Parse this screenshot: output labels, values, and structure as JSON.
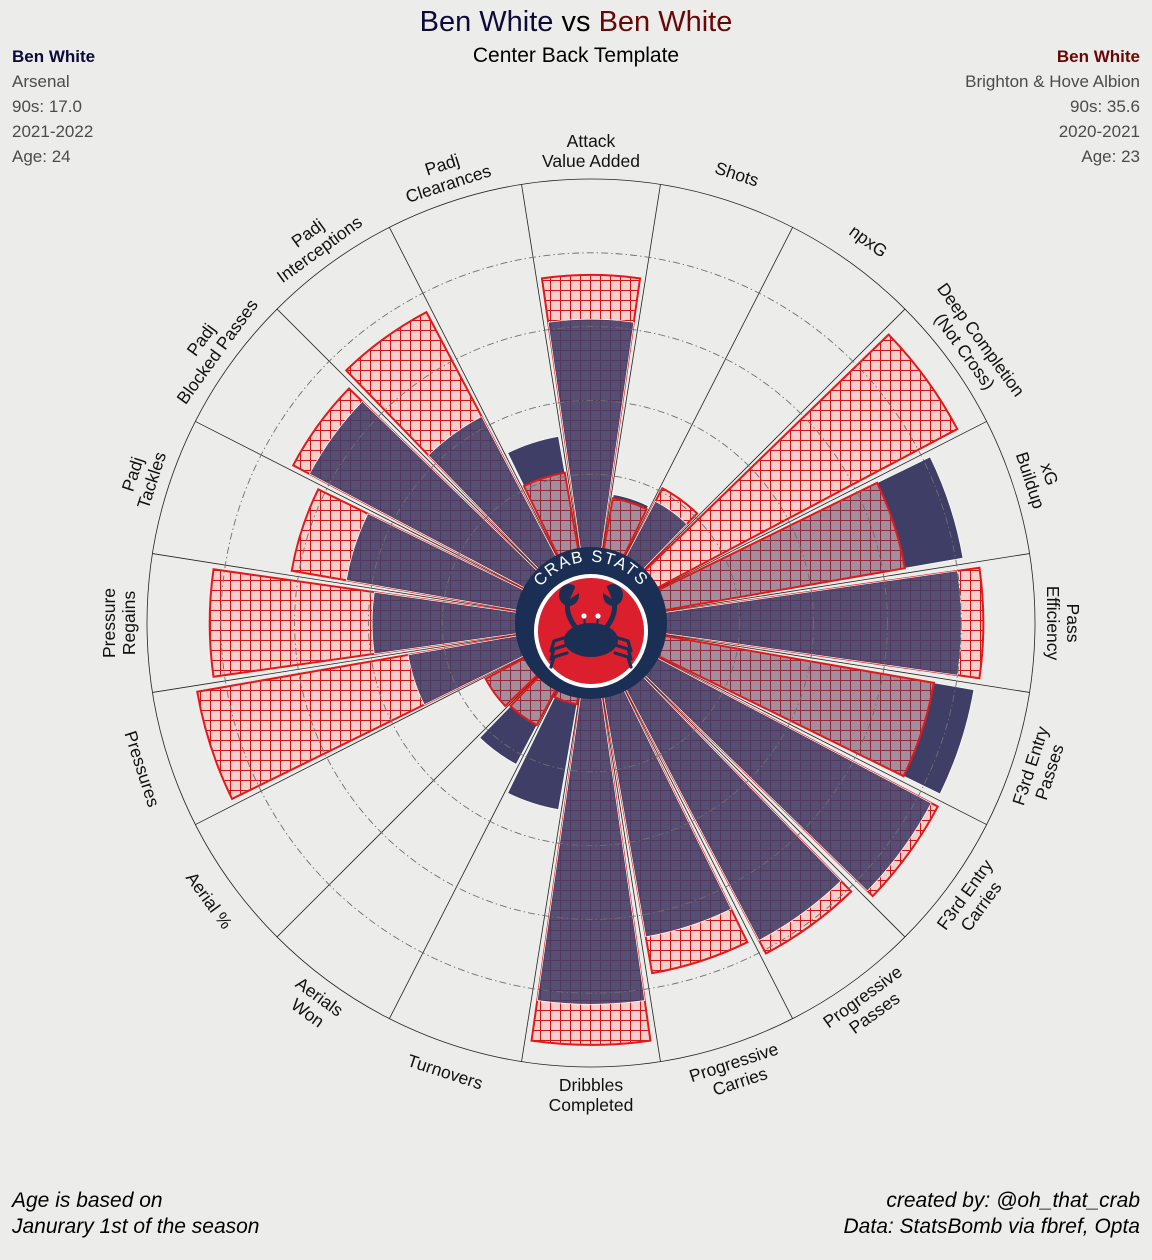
{
  "title": {
    "player_a": "Ben White",
    "vs": "vs",
    "player_b": "Ben White"
  },
  "subtitle": "Center Back Template",
  "player_a": {
    "name": "Ben White",
    "club": "Arsenal",
    "nineties": "90s: 17.0",
    "season": "2021-2022",
    "age": "Age: 24"
  },
  "player_b": {
    "name": "Ben White",
    "club": "Brighton & Hove Albion",
    "nineties": "90s: 35.6",
    "season": "2020-2021",
    "age": "Age: 23"
  },
  "footnote": {
    "line1": "Age is based on",
    "line2": "Janurary 1st of the season"
  },
  "credit": {
    "line1": "created by: @oh_that_crab",
    "line2": "Data: StatsBomb via fbref, Opta"
  },
  "logo_text": "CRAB STATS",
  "colors": {
    "player_a": "#3f3e66",
    "player_b": "#e01a1a",
    "player_b_fill": "#f4cfcb",
    "background": "#ececea",
    "logo_navy": "#1b2f55",
    "logo_red": "#dc1f2c"
  },
  "chart_data": {
    "type": "polar-bar",
    "scale": [
      0,
      100
    ],
    "gridlines": [
      20,
      40,
      60,
      80,
      100
    ],
    "categories": [
      "Attack\nValue Added",
      "Shots",
      "npxG",
      "Deep Completion\n(Not Cross)",
      "xG\nBuildup",
      "Pass\nEfficiency",
      "F3rd Entry\nPasses",
      "F3rd Entry\nCarries",
      "Progressive\nPasses",
      "Progressive\nCarries",
      "Dribbles\nCompleted",
      "Turnovers",
      "Aerials\nWon",
      "Aerial %",
      "Pressures",
      "Pressure\nRegains",
      "Padj\nTackles",
      "Padj\nBlocked Passes",
      "Padj\nInterceptions",
      "Padj\nClearances"
    ],
    "series": [
      {
        "name": "Ben White",
        "values": [
          62,
          15,
          17,
          0,
          82,
          80,
          85,
          84,
          77,
          66,
          83,
          31,
          23,
          12,
          30,
          39,
          47,
          66,
          43,
          31
        ]
      },
      {
        "name": "Ben White",
        "values": [
          74,
          14,
          21,
          92,
          66,
          86,
          74,
          86,
          81,
          76,
          94,
          2,
          11,
          12,
          88,
          83,
          62,
          71,
          75,
          21
        ]
      }
    ]
  }
}
